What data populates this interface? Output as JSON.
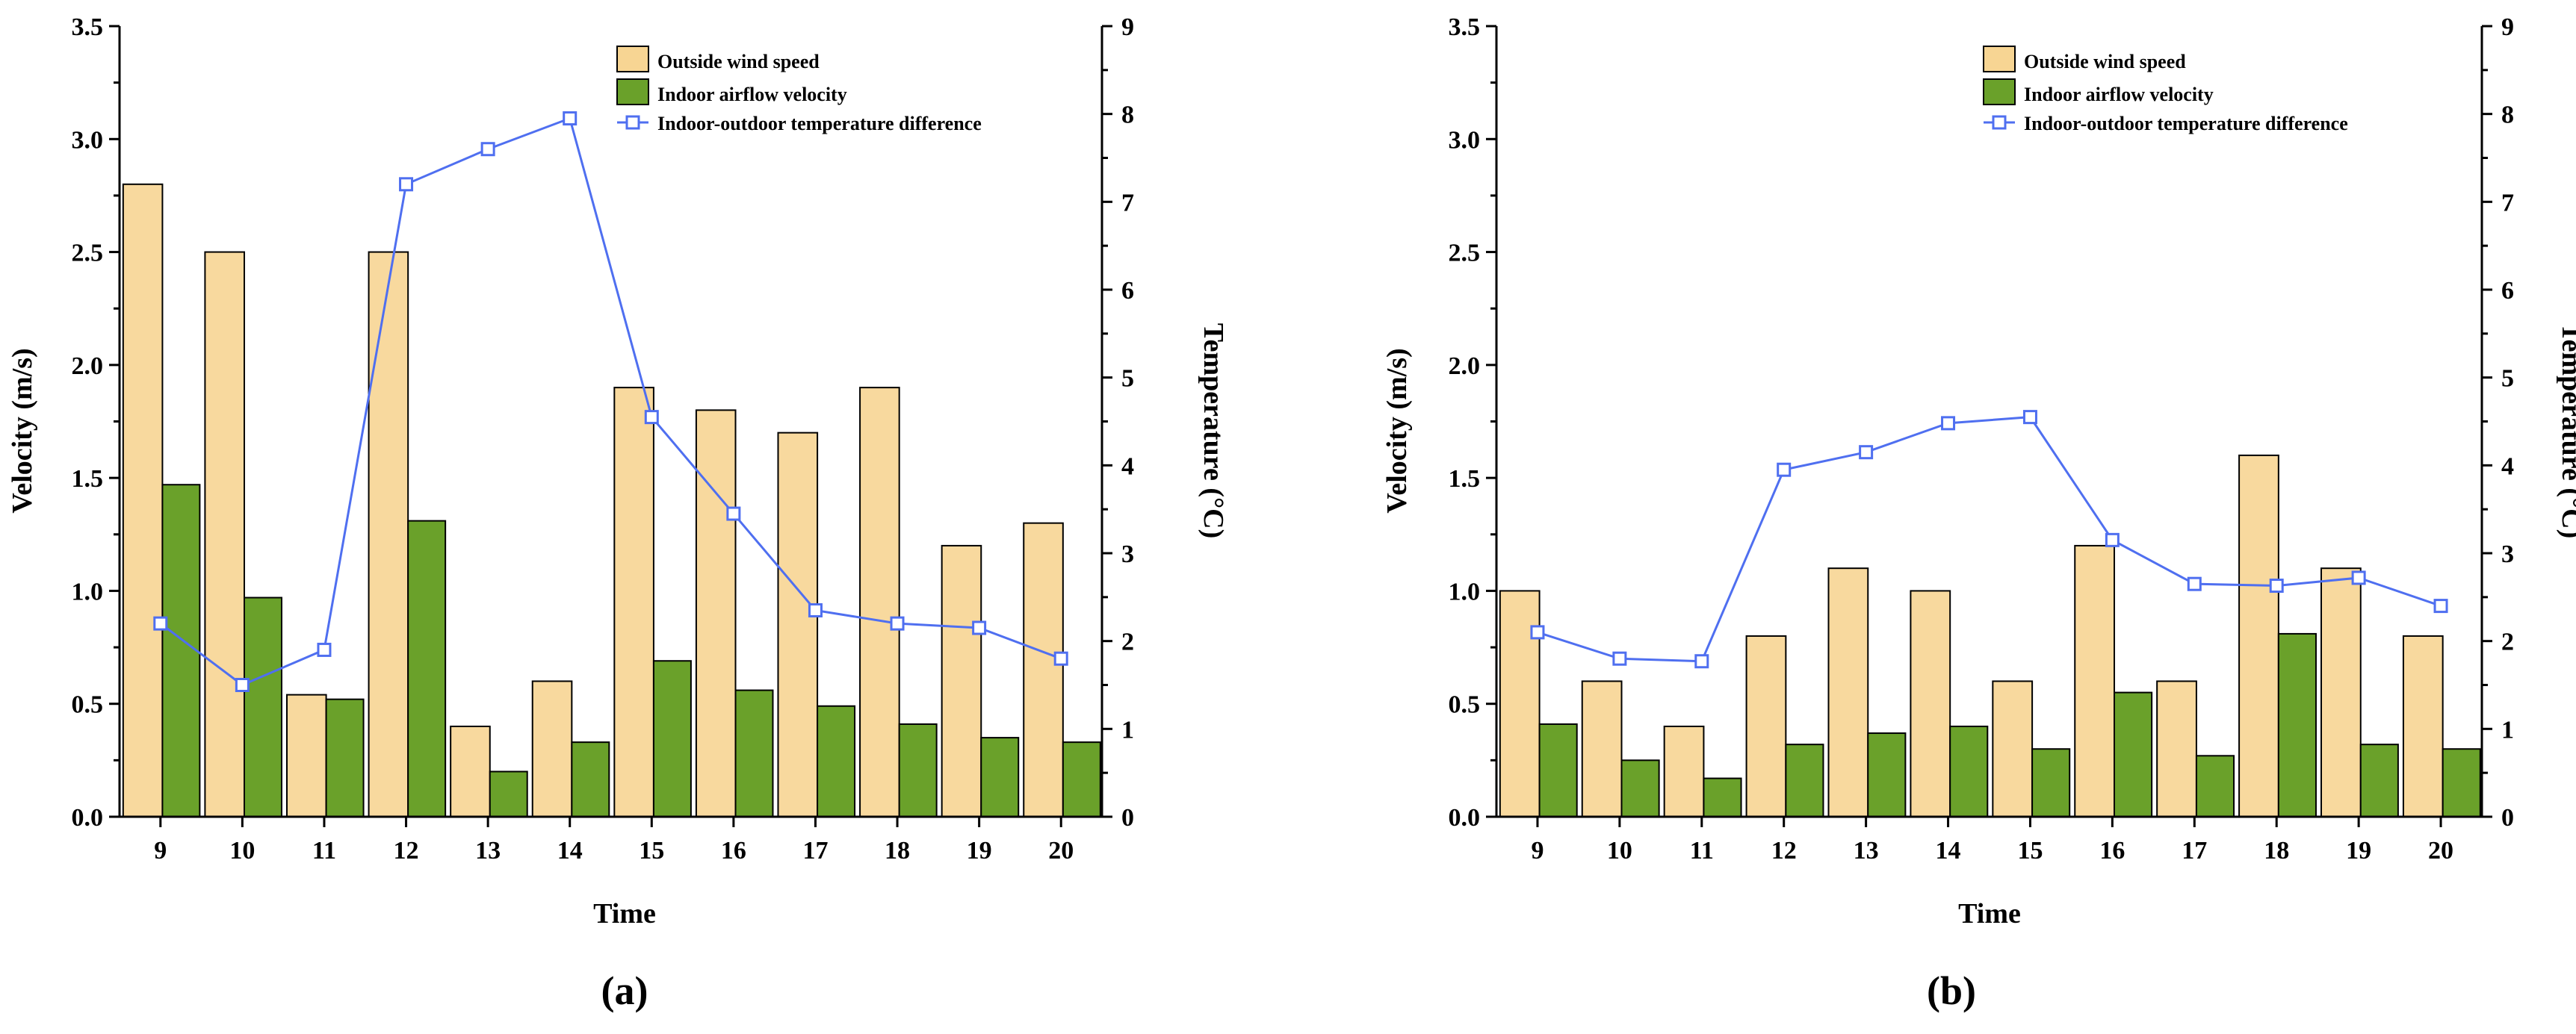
{
  "colors": {
    "outside": "#f7d593",
    "outside_edge": "#000000",
    "indoor": "#6aa12a",
    "indoor_edge": "#000000",
    "line": "#4f6ff0",
    "marker": "#4f6ff0"
  },
  "chart_data": [
    {
      "panel": "(a)",
      "type": "bar",
      "categories": [
        "9",
        "10",
        "11",
        "12",
        "13",
        "14",
        "15",
        "16",
        "17",
        "18",
        "19",
        "20"
      ],
      "series": [
        {
          "name": "Outside wind speed",
          "axis": "left",
          "values": [
            2.8,
            2.5,
            0.54,
            2.5,
            0.4,
            0.6,
            1.9,
            1.8,
            1.7,
            1.9,
            1.2,
            1.3
          ]
        },
        {
          "name": "Indoor airflow velocity",
          "axis": "left",
          "values": [
            1.47,
            0.97,
            0.52,
            1.31,
            0.2,
            0.33,
            0.69,
            0.56,
            0.49,
            0.41,
            0.35,
            0.33
          ]
        },
        {
          "name": "Indoor-outdoor temperature difference",
          "axis": "right",
          "kind": "line",
          "values": [
            2.2,
            1.5,
            1.9,
            7.2,
            7.6,
            7.95,
            4.55,
            3.45,
            2.35,
            2.2,
            2.15,
            1.8
          ]
        }
      ],
      "xlabel": "Time",
      "ylabel": "Velocity (m/s)",
      "y2label": "Temperature (°C)",
      "ylim": [
        0,
        3.5
      ],
      "y2lim": [
        0,
        9
      ],
      "yticks": [
        "0.0",
        "0.5",
        "1.0",
        "1.5",
        "2.0",
        "2.5",
        "3.0",
        "3.5"
      ],
      "y2ticks": [
        "0",
        "1",
        "2",
        "3",
        "4",
        "5",
        "6",
        "7",
        "8",
        "9"
      ],
      "legend_position": "top-right"
    },
    {
      "panel": "(b)",
      "type": "bar",
      "categories": [
        "9",
        "10",
        "11",
        "12",
        "13",
        "14",
        "15",
        "16",
        "17",
        "18",
        "19",
        "20"
      ],
      "series": [
        {
          "name": "Outside wind speed",
          "axis": "left",
          "values": [
            1.0,
            0.6,
            0.4,
            0.8,
            1.1,
            1.0,
            0.6,
            1.2,
            0.6,
            1.6,
            1.1,
            0.8
          ]
        },
        {
          "name": "Indoor airflow velocity",
          "axis": "left",
          "values": [
            0.41,
            0.25,
            0.17,
            0.32,
            0.37,
            0.4,
            0.3,
            0.55,
            0.27,
            0.81,
            0.32,
            0.3
          ]
        },
        {
          "name": "Indoor-outdoor temperature difference",
          "axis": "right",
          "kind": "line",
          "values": [
            2.1,
            1.8,
            1.77,
            3.95,
            4.15,
            4.48,
            4.55,
            3.15,
            2.65,
            2.63,
            2.72,
            2.4
          ]
        }
      ],
      "xlabel": "Time",
      "ylabel": "Velocity (m/s)",
      "y2label": "Temperature (°C)",
      "ylim": [
        0,
        3.5
      ],
      "y2lim": [
        0,
        9
      ],
      "yticks": [
        "0.0",
        "0.5",
        "1.0",
        "1.5",
        "2.0",
        "2.5",
        "3.0",
        "3.5"
      ],
      "y2ticks": [
        "0",
        "1",
        "2",
        "3",
        "4",
        "5",
        "6",
        "7",
        "8",
        "9"
      ],
      "legend_position": "top-right"
    }
  ]
}
